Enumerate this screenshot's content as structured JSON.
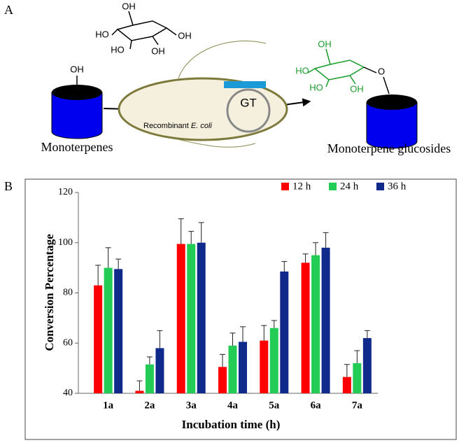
{
  "diagram": {
    "panel_label": "A",
    "sugar_labels": [
      "OH",
      "HO",
      "HO",
      "OH",
      "OH"
    ],
    "substrate_group": "OH",
    "substrate": "Monoterpenes",
    "cell_prefix": "Recombinant",
    "cell_species": "E. coli",
    "enzyme": "GT",
    "product_labels": [
      "OH",
      "HO",
      "HO",
      "OH",
      "O"
    ],
    "product": "Monoterpene glucosides"
  },
  "chart_data": {
    "type": "bar",
    "panel_label": "B",
    "x_label": "Incubation time (h)",
    "y_label": "Conversion Percentage",
    "categories": [
      "1a",
      "2a",
      "3a",
      "4a",
      "5a",
      "6a",
      "7a"
    ],
    "series": [
      {
        "name": "12 h",
        "color": "#ff0000",
        "values": [
          83,
          41,
          99.5,
          50.5,
          61,
          92,
          46.5
        ],
        "errors": [
          8,
          4,
          10,
          5,
          6,
          3.5,
          5
        ]
      },
      {
        "name": "24 h",
        "color": "#22cc55",
        "values": [
          90,
          51.5,
          99.5,
          59,
          66,
          95,
          52
        ],
        "errors": [
          8,
          3,
          5,
          5,
          3,
          5,
          5
        ]
      },
      {
        "name": "36 h",
        "color": "#102a8c",
        "values": [
          89.5,
          58,
          100,
          60.5,
          88.5,
          98,
          62
        ],
        "errors": [
          4,
          7,
          8,
          6,
          4,
          6,
          3
        ]
      }
    ],
    "ylim": [
      40,
      120
    ],
    "yticks": [
      40,
      60,
      80,
      100,
      120
    ],
    "grid": false,
    "legend": "top-right"
  }
}
